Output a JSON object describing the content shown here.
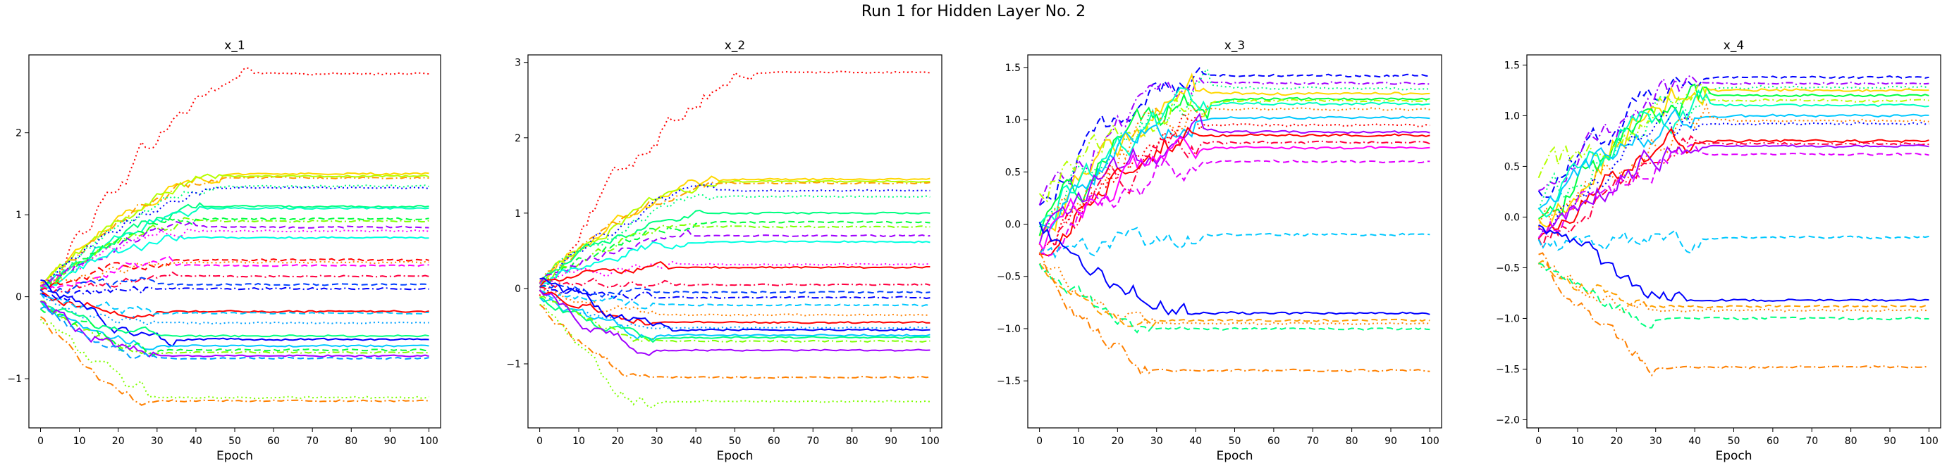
{
  "figure": {
    "title": "Run 1 for Hidden Layer No. 2"
  },
  "chart_data": [
    {
      "type": "line",
      "title": "x_1",
      "xlabel": "Epoch",
      "ylabel": "",
      "xlim": [
        -3,
        103
      ],
      "ylim": [
        -1.6,
        2.95
      ],
      "xticks": [
        "0",
        "10",
        "20",
        "30",
        "40",
        "50",
        "60",
        "70",
        "80",
        "90",
        "100"
      ],
      "yticks": [
        -1,
        0,
        1,
        2
      ],
      "series": [
        {
          "color": "#ff0000",
          "style": "dotted",
          "start": 0.0,
          "end": 2.72,
          "phase": 0.55,
          "noise": 0.1
        },
        {
          "color": "#ffd700",
          "style": "solid",
          "start": 0.15,
          "end": 1.5,
          "phase": 0.47,
          "noise": 0.05
        },
        {
          "color": "#b4ff00",
          "style": "solid",
          "start": 0.1,
          "end": 1.47,
          "phase": 0.47,
          "noise": 0.05
        },
        {
          "color": "#ffa000",
          "style": "dashdot",
          "start": 0.12,
          "end": 1.45,
          "phase": 0.47,
          "noise": 0.05
        },
        {
          "color": "#00ff80",
          "style": "dotted",
          "start": 0.1,
          "end": 1.35,
          "phase": 0.45,
          "noise": 0.05
        },
        {
          "color": "#0000ff",
          "style": "dotted",
          "start": 0.05,
          "end": 1.33,
          "phase": 0.45,
          "noise": 0.05
        },
        {
          "color": "#00ff80",
          "style": "solid",
          "start": 0.1,
          "end": 1.1,
          "phase": 0.42,
          "noise": 0.05
        },
        {
          "color": "#00ffc0",
          "style": "solid",
          "start": 0.08,
          "end": 1.08,
          "phase": 0.42,
          "noise": 0.05
        },
        {
          "color": "#00ff40",
          "style": "dashed",
          "start": 0.05,
          "end": 0.95,
          "phase": 0.4,
          "noise": 0.05
        },
        {
          "color": "#7fff00",
          "style": "dashdot",
          "start": 0.1,
          "end": 0.92,
          "phase": 0.4,
          "noise": 0.05
        },
        {
          "color": "#a000ff",
          "style": "dashed",
          "start": 0.1,
          "end": 0.85,
          "phase": 0.4,
          "noise": 0.05
        },
        {
          "color": "#ff00ff",
          "style": "dotted",
          "start": 0.1,
          "end": 0.8,
          "phase": 0.4,
          "noise": 0.05
        },
        {
          "color": "#00ffe0",
          "style": "solid",
          "start": 0.1,
          "end": 0.72,
          "phase": 0.38,
          "noise": 0.05
        },
        {
          "color": "#ff0000",
          "style": "dashed",
          "start": 0.05,
          "end": 0.45,
          "phase": 0.35,
          "noise": 0.05
        },
        {
          "color": "#ff8000",
          "style": "dotted",
          "start": 0.1,
          "end": 0.42,
          "phase": 0.35,
          "noise": 0.05
        },
        {
          "color": "#ff00ff",
          "style": "dashed",
          "start": 0.1,
          "end": 0.38,
          "phase": 0.35,
          "noise": 0.05
        },
        {
          "color": "#ff0040",
          "style": "dashdot",
          "start": 0.05,
          "end": 0.25,
          "phase": 0.35,
          "noise": 0.05
        },
        {
          "color": "#0040ff",
          "style": "dashed",
          "start": 0.05,
          "end": 0.15,
          "phase": 0.3,
          "noise": 0.05
        },
        {
          "color": "#0000ff",
          "style": "dashdot",
          "start": 0.0,
          "end": 0.1,
          "phase": 0.3,
          "noise": 0.05
        },
        {
          "color": "#ff0000",
          "style": "solid",
          "start": 0.0,
          "end": -0.18,
          "phase": 0.3,
          "noise": 0.05
        },
        {
          "color": "#00c8ff",
          "style": "dashed",
          "start": 0.0,
          "end": -0.2,
          "phase": 0.3,
          "noise": 0.05
        },
        {
          "color": "#00a0ff",
          "style": "dotted",
          "start": 0.0,
          "end": -0.32,
          "phase": 0.3,
          "noise": 0.05
        },
        {
          "color": "#0000ff",
          "style": "solid",
          "start": 0.15,
          "end": -0.52,
          "phase": 0.35,
          "noise": 0.06
        },
        {
          "color": "#00ff80",
          "style": "solid",
          "start": -0.1,
          "end": -0.48,
          "phase": 0.3,
          "noise": 0.05
        },
        {
          "color": "#00c8ff",
          "style": "solid",
          "start": -0.1,
          "end": -0.6,
          "phase": 0.3,
          "noise": 0.05
        },
        {
          "color": "#7fff00",
          "style": "dashdot",
          "start": -0.1,
          "end": -0.68,
          "phase": 0.3,
          "noise": 0.05
        },
        {
          "color": "#00ff40",
          "style": "dashed",
          "start": -0.1,
          "end": -0.65,
          "phase": 0.3,
          "noise": 0.05
        },
        {
          "color": "#a000ff",
          "style": "solid",
          "start": 0.0,
          "end": -0.72,
          "phase": 0.3,
          "noise": 0.06
        },
        {
          "color": "#00a0ff",
          "style": "dashed",
          "start": -0.1,
          "end": -0.75,
          "phase": 0.3,
          "noise": 0.05
        },
        {
          "color": "#7fff00",
          "style": "dotted",
          "start": -0.2,
          "end": -1.23,
          "phase": 0.3,
          "noise": 0.08
        },
        {
          "color": "#ff8000",
          "style": "dashdot",
          "start": -0.2,
          "end": -1.27,
          "phase": 0.28,
          "noise": 0.05
        }
      ]
    },
    {
      "type": "line",
      "title": "x_2",
      "xlabel": "Epoch",
      "ylabel": "",
      "xlim": [
        -3,
        103
      ],
      "ylim": [
        -1.85,
        3.1
      ],
      "xticks": [
        "0",
        "10",
        "20",
        "30",
        "40",
        "50",
        "60",
        "70",
        "80",
        "90",
        "100"
      ],
      "yticks": [
        -1,
        0,
        1,
        2,
        3
      ],
      "series": [
        {
          "color": "#ff0000",
          "style": "dotted",
          "start": 0.0,
          "end": 2.87,
          "phase": 0.55,
          "noise": 0.1
        },
        {
          "color": "#ffd700",
          "style": "solid",
          "start": 0.15,
          "end": 1.45,
          "phase": 0.47,
          "noise": 0.05
        },
        {
          "color": "#b4ff00",
          "style": "solid",
          "start": 0.1,
          "end": 1.42,
          "phase": 0.47,
          "noise": 0.05
        },
        {
          "color": "#ffa000",
          "style": "dashdot",
          "start": 0.12,
          "end": 1.4,
          "phase": 0.47,
          "noise": 0.05
        },
        {
          "color": "#0000ff",
          "style": "dotted",
          "start": 0.05,
          "end": 1.3,
          "phase": 0.45,
          "noise": 0.05
        },
        {
          "color": "#00ff80",
          "style": "dotted",
          "start": 0.1,
          "end": 1.22,
          "phase": 0.45,
          "noise": 0.05
        },
        {
          "color": "#00ff80",
          "style": "solid",
          "start": 0.1,
          "end": 1.0,
          "phase": 0.42,
          "noise": 0.05
        },
        {
          "color": "#00ff40",
          "style": "dashed",
          "start": 0.05,
          "end": 0.88,
          "phase": 0.4,
          "noise": 0.05
        },
        {
          "color": "#7fff00",
          "style": "dashdot",
          "start": 0.1,
          "end": 0.82,
          "phase": 0.4,
          "noise": 0.05
        },
        {
          "color": "#a000ff",
          "style": "dashed",
          "start": 0.1,
          "end": 0.7,
          "phase": 0.4,
          "noise": 0.05
        },
        {
          "color": "#00ffe0",
          "style": "solid",
          "start": 0.1,
          "end": 0.62,
          "phase": 0.38,
          "noise": 0.05
        },
        {
          "color": "#ff00ff",
          "style": "dotted",
          "start": 0.1,
          "end": 0.32,
          "phase": 0.35,
          "noise": 0.05
        },
        {
          "color": "#ff0000",
          "style": "solid",
          "start": 0.05,
          "end": 0.28,
          "phase": 0.35,
          "noise": 0.05
        },
        {
          "color": "#ff0040",
          "style": "dashdot",
          "start": 0.05,
          "end": 0.05,
          "phase": 0.35,
          "noise": 0.05
        },
        {
          "color": "#0040ff",
          "style": "dashed",
          "start": 0.05,
          "end": -0.05,
          "phase": 0.3,
          "noise": 0.05
        },
        {
          "color": "#0000ff",
          "style": "dashdot",
          "start": 0.0,
          "end": -0.12,
          "phase": 0.3,
          "noise": 0.05
        },
        {
          "color": "#00c8ff",
          "style": "dashed",
          "start": 0.0,
          "end": -0.22,
          "phase": 0.3,
          "noise": 0.05
        },
        {
          "color": "#ff8000",
          "style": "dotted",
          "start": 0.0,
          "end": -0.35,
          "phase": 0.3,
          "noise": 0.05
        },
        {
          "color": "#ff0000",
          "style": "solid",
          "start": 0.0,
          "end": -0.45,
          "phase": 0.3,
          "noise": 0.05
        },
        {
          "color": "#00a0ff",
          "style": "dotted",
          "start": 0.0,
          "end": -0.52,
          "phase": 0.3,
          "noise": 0.05
        },
        {
          "color": "#0000ff",
          "style": "solid",
          "start": 0.15,
          "end": -0.55,
          "phase": 0.35,
          "noise": 0.06
        },
        {
          "color": "#00c8ff",
          "style": "solid",
          "start": -0.1,
          "end": -0.62,
          "phase": 0.3,
          "noise": 0.05
        },
        {
          "color": "#00ff80",
          "style": "solid",
          "start": -0.1,
          "end": -0.65,
          "phase": 0.3,
          "noise": 0.05
        },
        {
          "color": "#7fff00",
          "style": "dashdot",
          "start": -0.1,
          "end": -0.7,
          "phase": 0.3,
          "noise": 0.05
        },
        {
          "color": "#a000ff",
          "style": "solid",
          "start": 0.0,
          "end": -0.82,
          "phase": 0.3,
          "noise": 0.06
        },
        {
          "color": "#ff8000",
          "style": "dashdot",
          "start": -0.2,
          "end": -1.18,
          "phase": 0.28,
          "noise": 0.05
        },
        {
          "color": "#7fff00",
          "style": "dotted",
          "start": -0.2,
          "end": -1.5,
          "phase": 0.3,
          "noise": 0.08
        }
      ]
    },
    {
      "type": "line",
      "title": "x_3",
      "xlabel": "Epoch",
      "ylabel": "",
      "xlim": [
        -3,
        103
      ],
      "ylim": [
        -1.95,
        1.62
      ],
      "xticks": [
        "0",
        "10",
        "20",
        "30",
        "40",
        "50",
        "60",
        "70",
        "80",
        "90",
        "100"
      ],
      "yticks": [
        -1.5,
        -1.0,
        -0.5,
        0.0,
        0.5,
        1.0,
        1.5
      ],
      "series": [
        {
          "color": "#0000ff",
          "style": "dashed",
          "start": 0.2,
          "end": 1.42,
          "phase": 0.42,
          "noise": 0.1
        },
        {
          "color": "#a000ff",
          "style": "dashdot",
          "start": 0.2,
          "end": 1.35,
          "phase": 0.42,
          "noise": 0.1
        },
        {
          "color": "#00ff80",
          "style": "dotted",
          "start": 0.0,
          "end": 1.3,
          "phase": 0.44,
          "noise": 0.12
        },
        {
          "color": "#ffd700",
          "style": "solid",
          "start": -0.1,
          "end": 1.25,
          "phase": 0.44,
          "noise": 0.12
        },
        {
          "color": "#00ff40",
          "style": "solid",
          "start": -0.1,
          "end": 1.2,
          "phase": 0.44,
          "noise": 0.12
        },
        {
          "color": "#b4ff00",
          "style": "dashdot",
          "start": 0.3,
          "end": 1.18,
          "phase": 0.44,
          "noise": 0.12
        },
        {
          "color": "#00ffc0",
          "style": "solid",
          "start": 0.0,
          "end": 1.15,
          "phase": 0.44,
          "noise": 0.12
        },
        {
          "color": "#ff8000",
          "style": "dotted",
          "start": -0.2,
          "end": 1.1,
          "phase": 0.44,
          "noise": 0.12
        },
        {
          "color": "#00c8ff",
          "style": "solid",
          "start": 0.0,
          "end": 1.02,
          "phase": 0.4,
          "noise": 0.1
        },
        {
          "color": "#ff0000",
          "style": "dotted",
          "start": -0.3,
          "end": 0.95,
          "phase": 0.42,
          "noise": 0.1
        },
        {
          "color": "#a000ff",
          "style": "solid",
          "start": -0.2,
          "end": 0.88,
          "phase": 0.42,
          "noise": 0.1
        },
        {
          "color": "#ff0000",
          "style": "solid",
          "start": -0.3,
          "end": 0.85,
          "phase": 0.4,
          "noise": 0.1
        },
        {
          "color": "#ff0040",
          "style": "dashdot",
          "start": -0.3,
          "end": 0.78,
          "phase": 0.42,
          "noise": 0.1
        },
        {
          "color": "#ff00ff",
          "style": "solid",
          "start": -0.2,
          "end": 0.73,
          "phase": 0.42,
          "noise": 0.1
        },
        {
          "color": "#e000ff",
          "style": "dashed",
          "start": -0.3,
          "end": 0.6,
          "phase": 0.42,
          "noise": 0.1
        },
        {
          "color": "#00c8ff",
          "style": "dashed",
          "start": -0.3,
          "end": -0.1,
          "phase": 0.42,
          "noise": 0.08
        },
        {
          "color": "#0000ff",
          "style": "solid",
          "start": 0.0,
          "end": -0.85,
          "phase": 0.4,
          "noise": 0.08
        },
        {
          "color": "#ffa000",
          "style": "dashed",
          "start": -0.4,
          "end": -0.92,
          "phase": 0.3,
          "noise": 0.06
        },
        {
          "color": "#ff8000",
          "style": "dotted",
          "start": -0.4,
          "end": -0.95,
          "phase": 0.3,
          "noise": 0.06
        },
        {
          "color": "#00ff80",
          "style": "dashed",
          "start": -0.4,
          "end": -1.0,
          "phase": 0.3,
          "noise": 0.06
        },
        {
          "color": "#ff8000",
          "style": "dashdot",
          "start": -0.3,
          "end": -1.4,
          "phase": 0.3,
          "noise": 0.08
        }
      ]
    },
    {
      "type": "line",
      "title": "x_4",
      "xlabel": "Epoch",
      "ylabel": "",
      "xlim": [
        -3,
        103
      ],
      "ylim": [
        -2.08,
        1.6
      ],
      "xticks": [
        "0",
        "10",
        "20",
        "30",
        "40",
        "50",
        "60",
        "70",
        "80",
        "90",
        "100"
      ],
      "yticks": [
        -2.0,
        -1.5,
        -1.0,
        -0.5,
        0.0,
        0.5,
        1.0,
        1.5
      ],
      "series": [
        {
          "color": "#0000ff",
          "style": "dashed",
          "start": 0.2,
          "end": 1.38,
          "phase": 0.42,
          "noise": 0.1
        },
        {
          "color": "#a000ff",
          "style": "dashdot",
          "start": 0.2,
          "end": 1.32,
          "phase": 0.42,
          "noise": 0.1
        },
        {
          "color": "#00ff80",
          "style": "dotted",
          "start": 0.0,
          "end": 1.28,
          "phase": 0.44,
          "noise": 0.12
        },
        {
          "color": "#ffd700",
          "style": "solid",
          "start": -0.1,
          "end": 1.25,
          "phase": 0.44,
          "noise": 0.12
        },
        {
          "color": "#00ff40",
          "style": "solid",
          "start": -0.1,
          "end": 1.2,
          "phase": 0.44,
          "noise": 0.12
        },
        {
          "color": "#b4ff00",
          "style": "dashdot",
          "start": 0.3,
          "end": 1.15,
          "phase": 0.44,
          "noise": 0.12
        },
        {
          "color": "#00ffc0",
          "style": "solid",
          "start": 0.0,
          "end": 1.1,
          "phase": 0.44,
          "noise": 0.12
        },
        {
          "color": "#00c8ff",
          "style": "solid",
          "start": 0.0,
          "end": 1.0,
          "phase": 0.4,
          "noise": 0.1
        },
        {
          "color": "#ff8000",
          "style": "dotted",
          "start": -0.2,
          "end": 0.95,
          "phase": 0.44,
          "noise": 0.12
        },
        {
          "color": "#0000ff",
          "style": "dotted",
          "start": -0.2,
          "end": 0.92,
          "phase": 0.42,
          "noise": 0.1
        },
        {
          "color": "#ff0000",
          "style": "solid",
          "start": -0.3,
          "end": 0.75,
          "phase": 0.4,
          "noise": 0.1
        },
        {
          "color": "#ff0040",
          "style": "dashdot",
          "start": -0.3,
          "end": 0.72,
          "phase": 0.42,
          "noise": 0.1
        },
        {
          "color": "#a000ff",
          "style": "solid",
          "start": -0.2,
          "end": 0.7,
          "phase": 0.42,
          "noise": 0.1
        },
        {
          "color": "#e000ff",
          "style": "dashed",
          "start": -0.3,
          "end": 0.62,
          "phase": 0.42,
          "noise": 0.1
        },
        {
          "color": "#00c8ff",
          "style": "dashed",
          "start": -0.3,
          "end": -0.2,
          "phase": 0.42,
          "noise": 0.08
        },
        {
          "color": "#0000ff",
          "style": "solid",
          "start": 0.0,
          "end": -0.82,
          "phase": 0.4,
          "noise": 0.08
        },
        {
          "color": "#ffa000",
          "style": "dashed",
          "start": -0.4,
          "end": -0.88,
          "phase": 0.3,
          "noise": 0.06
        },
        {
          "color": "#ff8000",
          "style": "dotted",
          "start": -0.4,
          "end": -0.92,
          "phase": 0.3,
          "noise": 0.06
        },
        {
          "color": "#00ff80",
          "style": "dashed",
          "start": -0.4,
          "end": -1.0,
          "phase": 0.3,
          "noise": 0.06
        },
        {
          "color": "#ff8000",
          "style": "dashdot",
          "start": -0.3,
          "end": -1.48,
          "phase": 0.3,
          "noise": 0.08
        }
      ]
    }
  ]
}
